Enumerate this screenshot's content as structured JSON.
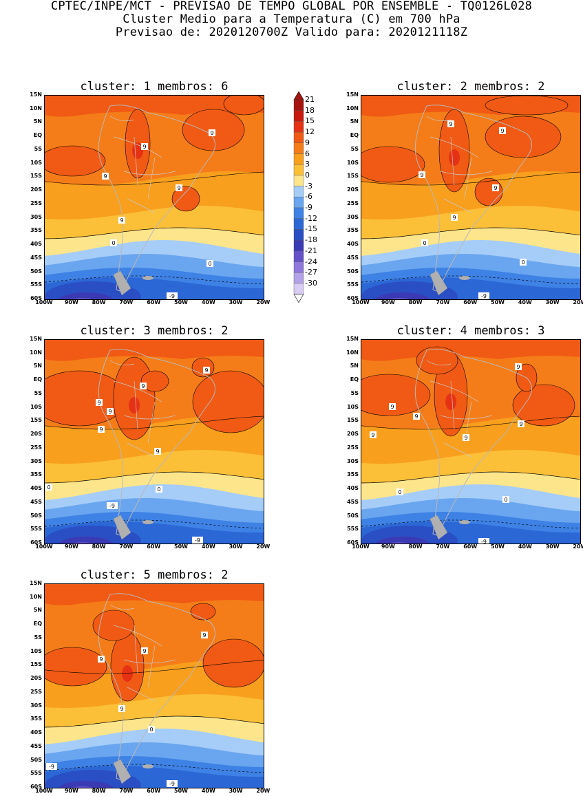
{
  "header": {
    "line1": "CPTEC/INPE/MCT - PREVISAO DE TEMPO GLOBAL POR ENSEMBLE - TQ0126L028",
    "line2": "Cluster Medio para a Temperatura (C) em 700 hPa",
    "line3": "Previsao de: 2020120700Z   Valido para: 2020121118Z"
  },
  "axes": {
    "lat_labels": [
      "15N",
      "10N",
      "5N",
      "EQ",
      "5S",
      "10S",
      "15S",
      "20S",
      "25S",
      "30S",
      "35S",
      "40S",
      "45S",
      "50S",
      "55S",
      "60S"
    ],
    "lon_labels": [
      "100W",
      "90W",
      "80W",
      "70W",
      "60W",
      "50W",
      "40W",
      "30W",
      "20W"
    ]
  },
  "legend": {
    "levels": [
      "21",
      "18",
      "15",
      "12",
      "9",
      "6",
      "3",
      "0",
      "-3",
      "-6",
      "-9",
      "-12",
      "-15",
      "-18",
      "-21",
      "-24",
      "-27",
      "-30"
    ],
    "colors": [
      "#a5140f",
      "#c8190f",
      "#e63214",
      "#f05a14",
      "#f57d19",
      "#f89f1e",
      "#fbbf38",
      "#fde58c",
      "#a6cdf7",
      "#6aa6ef",
      "#3f82e5",
      "#2c67d6",
      "#2a4fc4",
      "#3b3ab5",
      "#6552c9",
      "#8e78db",
      "#b4a2e8",
      "#d8ccf3"
    ]
  },
  "panels": [
    {
      "title": "cluster: 1   membros: 6"
    },
    {
      "title": "cluster: 2   membros: 2"
    },
    {
      "title": "cluster: 3   membros: 2"
    },
    {
      "title": "cluster: 4   membros: 3"
    },
    {
      "title": "cluster: 5   membros: 2"
    }
  ],
  "contour_labels": {
    "p0": [
      "9",
      "9",
      "9",
      "9",
      "9",
      "0",
      "0",
      "-9"
    ],
    "p1": [
      "9",
      "9",
      "9",
      "9",
      "9",
      "0",
      "0",
      "-9"
    ],
    "p2": [
      "9",
      "9",
      "9",
      "9",
      "9",
      "9",
      "0",
      "0",
      "-9",
      "-9"
    ],
    "p3": [
      "9",
      "9",
      "9",
      "9",
      "9",
      "9",
      "0",
      "0",
      "-9"
    ],
    "p4": [
      "9",
      "9",
      "9",
      "9",
      "0",
      "-9",
      "-9"
    ]
  }
}
